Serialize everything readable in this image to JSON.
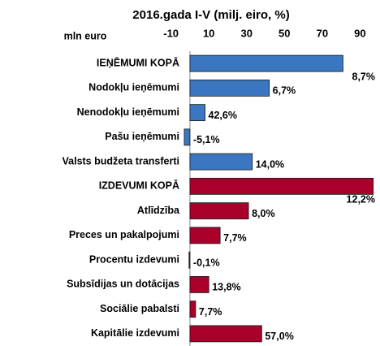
{
  "chart_data": {
    "type": "hbar",
    "title": "2016.gada I-V (milj. eiro, %)",
    "xlabel": "mln euro",
    "categories": [
      "IEŅĒMUMI KOPĀ",
      "Nodokļu ieņēmumi",
      "Nenodokļu ieņēmumi",
      "Pašu ieņēmumi",
      "Valsts budžeta transferti",
      "IZDEVUMI KOPĀ",
      "Atlīdzība",
      "Preces un pakalpojumi",
      "Procentu izdevumi",
      "Subsīdijas un dotācijas",
      "Sociālie pabalsti",
      "Kapitālie izdevumi"
    ],
    "values": [
      81,
      42,
      8,
      -3,
      33,
      97,
      31,
      16,
      -0.5,
      10,
      3,
      38
    ],
    "labels": [
      "8,7%",
      "6,7%",
      "42,6%",
      "-5,1%",
      "14,0%",
      "12,2%",
      "8,0%",
      "7,7%",
      "-0,1%",
      "13,8%",
      "7,7%",
      "57,0%"
    ],
    "colors": [
      "#3a77c0",
      "#3a77c0",
      "#3a77c0",
      "#3a77c0",
      "#3a77c0",
      "#a8002a",
      "#a8002a",
      "#a8002a",
      "#a8002a",
      "#a8002a",
      "#a8002a",
      "#a8002a"
    ],
    "xlim": [
      -12,
      98
    ],
    "xticks": [
      -10,
      10,
      30,
      50,
      70,
      90
    ]
  }
}
